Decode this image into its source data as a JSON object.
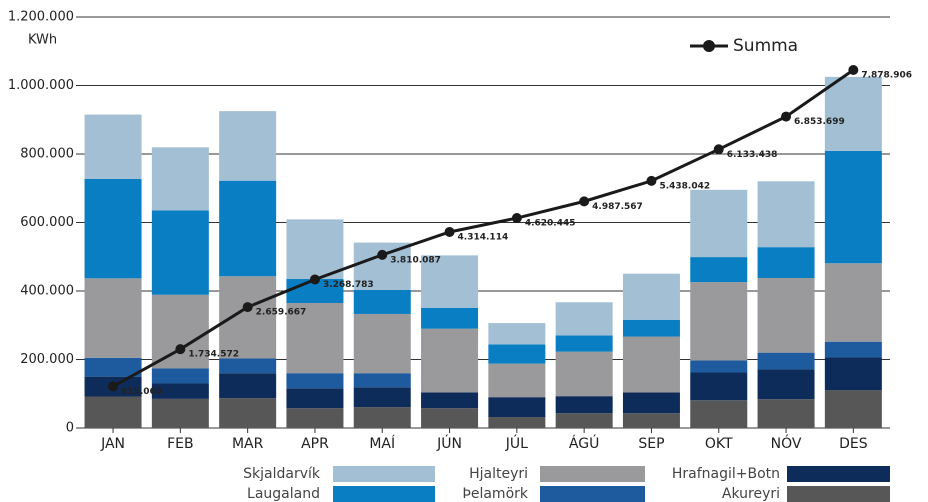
{
  "chart_data": {
    "type": "bar",
    "stacked": true,
    "y_label": "KWh",
    "categories": [
      "JAN",
      "FEB",
      "MAR",
      "APR",
      "MAÍ",
      "JÚN",
      "JÚL",
      "ÁGÚ",
      "SEP",
      "OKT",
      "NÓV",
      "DES"
    ],
    "series": [
      {
        "name": "Akureyri",
        "color": "#575757",
        "values": [
          92000,
          85000,
          87000,
          58000,
          61000,
          58000,
          32000,
          43000,
          43000,
          81000,
          84000,
          110000
        ]
      },
      {
        "name": "Hrafnagil+Botn",
        "color": "#0d2c5a",
        "values": [
          58000,
          45000,
          73000,
          58000,
          58000,
          46000,
          58000,
          50000,
          61000,
          81000,
          87000,
          96000
        ]
      },
      {
        "name": "Þelamörk",
        "color": "#1e5a9e",
        "values": [
          55000,
          44000,
          43000,
          44000,
          41000,
          0,
          0,
          0,
          0,
          35000,
          49000,
          46000
        ]
      },
      {
        "name": "Hjalteyri",
        "color": "#9a9a9c",
        "values": [
          232000,
          215000,
          240000,
          205000,
          173000,
          186000,
          98000,
          130000,
          163000,
          229000,
          218000,
          229000
        ]
      },
      {
        "name": "Laugaland",
        "color": "#0a7ec2",
        "values": [
          290000,
          246000,
          279000,
          70000,
          70000,
          61000,
          56000,
          47000,
          49000,
          73000,
          90000,
          328000
        ]
      },
      {
        "name": "Skjaldarvík",
        "color": "#a3bfd4",
        "values": [
          188060,
          184512,
          203095,
          174116,
          138304,
          153027,
          62331,
          97122,
          134475,
          196396,
          192261,
          216207
        ]
      },
      {
        "name": "Summa",
        "type": "line",
        "axis": "y2",
        "color": "#1a1a1a",
        "values": [
          915060,
          1734572,
          2659667,
          3268783,
          3810087,
          4314114,
          4620445,
          4987567,
          5438042,
          6133438,
          6853699,
          7878906
        ],
        "value_labels": [
          "915.060",
          "1.734.572",
          "2.659.667",
          "3.268.783",
          "3.810.087",
          "4.314.114",
          "4.620.445",
          "4.987.567",
          "5.438.042",
          "6.133.438",
          "6.853.699",
          "7.878.906"
        ]
      }
    ],
    "ylim": [
      0,
      1200000
    ],
    "yticks": [
      0,
      {
        "value": 200000,
        "label": "200.000"
      },
      {
        "value": 400000,
        "label": "400.000"
      },
      {
        "value": 600000,
        "label": "600.000"
      },
      {
        "value": 800000,
        "label": "800.000"
      },
      {
        "value": 1000000,
        "label": "1.000.000"
      },
      {
        "value": 1200000,
        "label": "1.200.000"
      }
    ],
    "y2lim": [
      0,
      9045000
    ],
    "grid": true
  }
}
